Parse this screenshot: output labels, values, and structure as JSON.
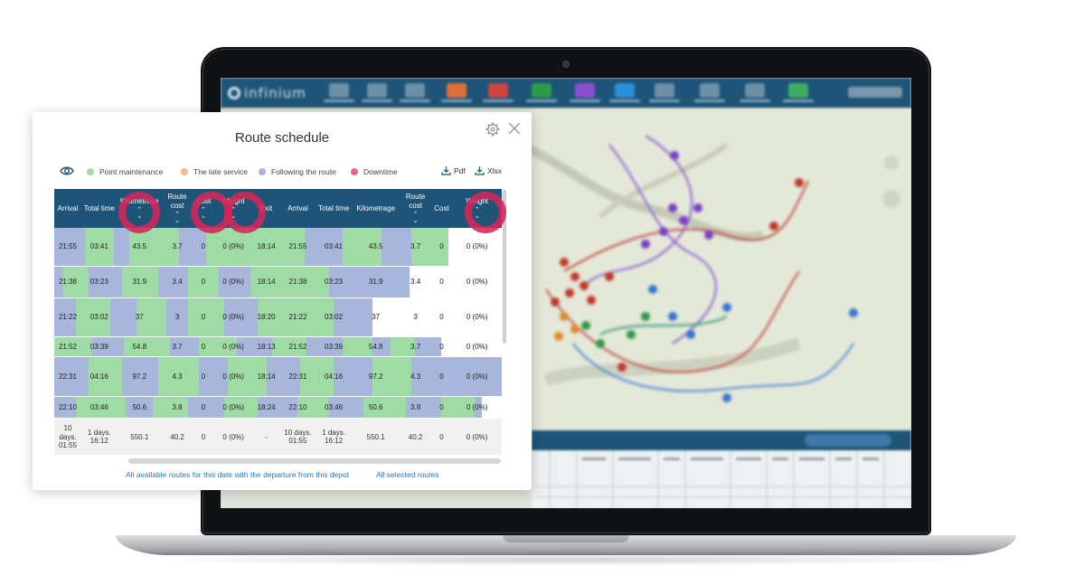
{
  "dialog": {
    "title": "Route schedule",
    "legend": [
      {
        "label": "Point maintenance",
        "color": "#9fdba4"
      },
      {
        "label": "The late service",
        "color": "#f5b98a"
      },
      {
        "label": "Following the route",
        "color": "#a9b6dc"
      },
      {
        "label": "Downtime",
        "color": "#e06b7b"
      }
    ],
    "export_pdf": "Pdf",
    "export_xlsx": "Xlsx",
    "link_depot_routes": "All available routes for this date with the departure from this depot",
    "link_selected_routes": "All selected routes"
  },
  "colors": {
    "header": "#1d5478",
    "maintenance": "#9fdba4",
    "following": "#a9b6dc",
    "highlight": "#d62658",
    "link": "#1f78c8"
  },
  "app": {
    "brand": "infinium"
  },
  "table": {
    "columns": [
      {
        "label": "Arrival",
        "sort": false
      },
      {
        "label": "Total time",
        "sort": false
      },
      {
        "label": "Kilometrage",
        "sort": true
      },
      {
        "label": "Route cost",
        "sort": true
      },
      {
        "label": "Cost",
        "sort": true
      },
      {
        "label": "Weight",
        "sort": true
      },
      {
        "label": "Exit",
        "sort": false
      },
      {
        "label": "Arrival",
        "sort": false
      },
      {
        "label": "Total time",
        "sort": false
      },
      {
        "label": "Kilometrage",
        "sort": false
      },
      {
        "label": "Route cost",
        "sort": true
      },
      {
        "label": "Cost",
        "sort": false
      },
      {
        "label": "Weight",
        "sort": true
      }
    ],
    "rows": [
      [
        "21:55",
        "03:41",
        "43.5",
        "3.7",
        "0",
        "0 (0%)",
        "18:14",
        "21:55",
        "03:41",
        "43.5",
        "3.7",
        "0",
        "0 (0%)"
      ],
      [
        "21:38",
        "03:23",
        "31.9",
        "3.4",
        "0",
        "0 (0%)",
        "18:14",
        "21:38",
        "03:23",
        "31.9",
        "3.4",
        "0",
        "0 (0%)"
      ],
      [
        "21:22",
        "03:02",
        "37",
        "3",
        "0",
        "0 (0%)",
        "18:20",
        "21:22",
        "03:02",
        "37",
        "3",
        "0",
        "0 (0%)"
      ],
      [
        "21:52",
        "03:39",
        "54.8",
        "3.7",
        "0",
        "0 (0%)",
        "18:13",
        "21:52",
        "03:39",
        "54.8",
        "3.7",
        "0",
        "0 (0%)"
      ],
      [
        "22:31",
        "04:16",
        "97.2",
        "4.3",
        "0",
        "0 (0%)",
        "18:14",
        "22:31",
        "04:16",
        "97.2",
        "4.3",
        "0",
        "0 (0%)"
      ],
      [
        "22:10",
        "03:46",
        "50.6",
        "3.8",
        "0",
        "0 (0%)",
        "18:24",
        "22:10",
        "03:46",
        "50.6",
        "3.8",
        "0",
        "0 (0%)"
      ]
    ],
    "totals": [
      "10 days. 01:55",
      "1 days. 16:12",
      "550.1",
      "40.2",
      "0",
      "0 (0%)",
      "-",
      "10 days. 01:55",
      "1 days. 16:12",
      "550.1",
      "40.2",
      "0",
      "0 (0%)"
    ]
  }
}
